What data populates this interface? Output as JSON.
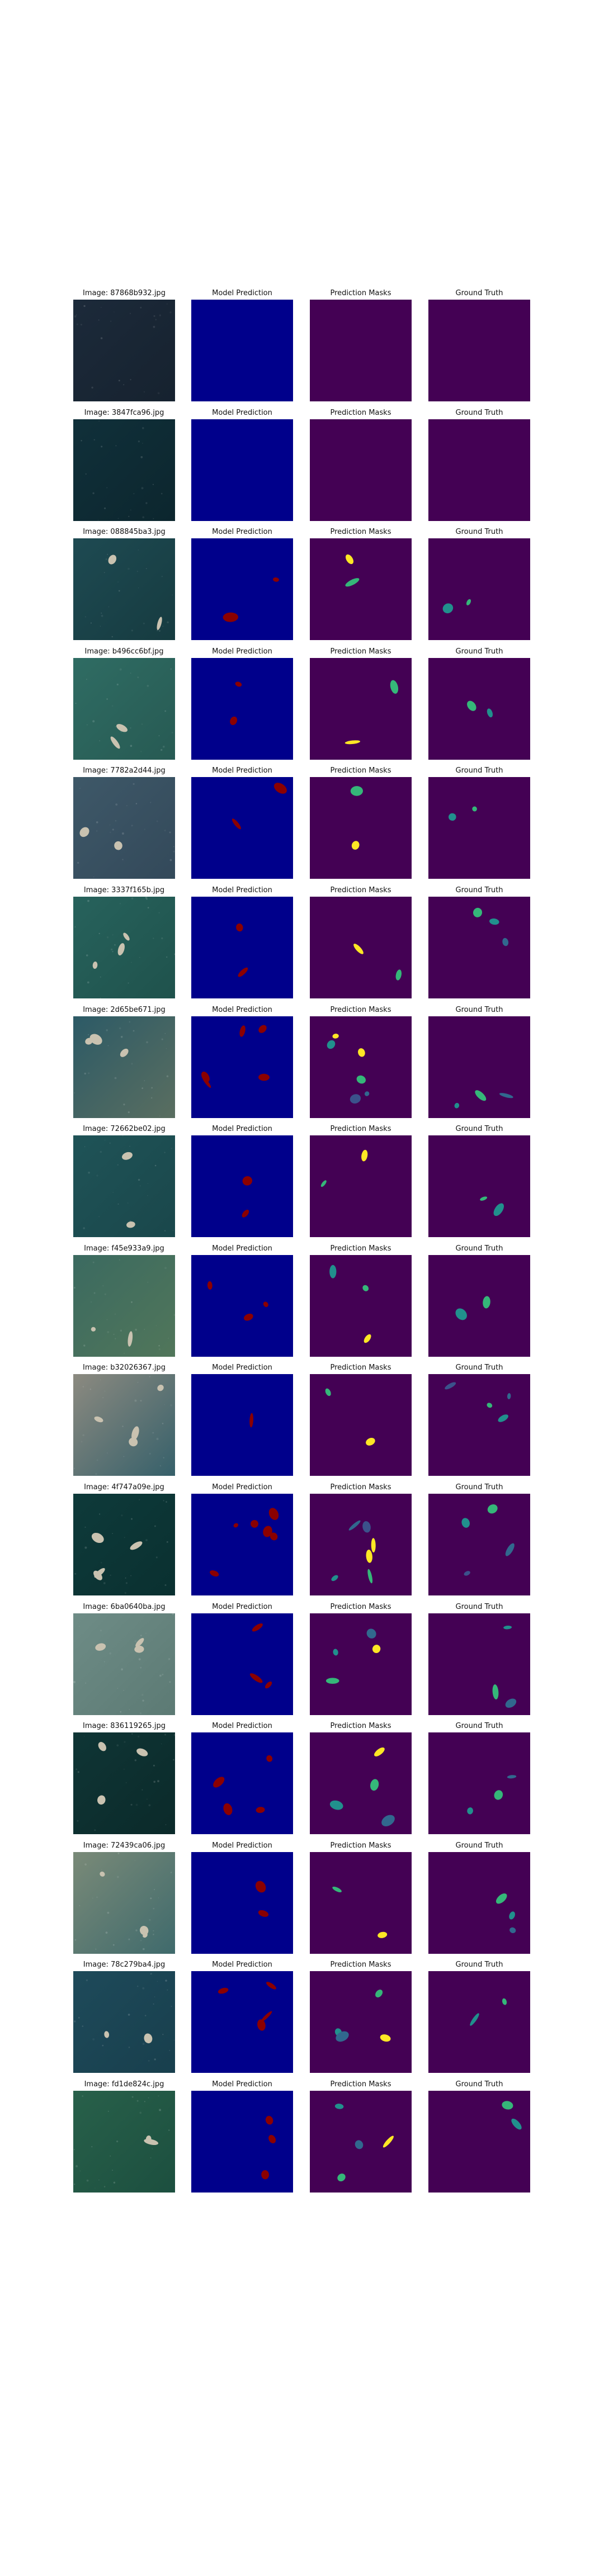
{
  "figure": {
    "column_titles": [
      "Model Prediction",
      "Prediction Masks",
      "Ground Truth"
    ],
    "colors": {
      "prediction_background": "#00008b",
      "prediction_blob": "#8b0000",
      "mask_background": "#440154",
      "gt_background": "#440154",
      "viridis_palette": [
        "#fde725",
        "#35b779",
        "#21908d",
        "#31688e",
        "#3b528b"
      ]
    },
    "rows": [
      {
        "image_label": "Image: 87868b932.jpg",
        "photo_colors": [
          "#1c2a3a",
          "#16222f"
        ],
        "pred_blobs": 0,
        "mask_blobs": 0,
        "gt_blobs": 0
      },
      {
        "image_label": "Image: 3847fca96.jpg",
        "photo_colors": [
          "#10303a",
          "#0c262e"
        ],
        "pred_blobs": 0,
        "mask_blobs": 0,
        "gt_blobs": 0
      },
      {
        "image_label": "Image: 088845ba3.jpg",
        "photo_colors": [
          "#1e4a52",
          "#163b40"
        ],
        "pred_blobs": 2,
        "mask_blobs": 2,
        "gt_blobs": 2
      },
      {
        "image_label": "Image: b496cc6bf.jpg",
        "photo_colors": [
          "#2f6c63",
          "#275a53"
        ],
        "pred_blobs": 2,
        "mask_blobs": 2,
        "gt_blobs": 2
      },
      {
        "image_label": "Image: 7782a2d44.jpg",
        "photo_colors": [
          "#3e5868",
          "#33495a"
        ],
        "pred_blobs": 2,
        "mask_blobs": 2,
        "gt_blobs": 2
      },
      {
        "image_label": "Image: 3337f165b.jpg",
        "photo_colors": [
          "#27625c",
          "#1f524c"
        ],
        "pred_blobs": 2,
        "mask_blobs": 2,
        "gt_blobs": 3
      },
      {
        "image_label": "Image: 2d65be671.jpg",
        "photo_colors": [
          "#2c5a66",
          "#5a6e60"
        ],
        "pred_blobs": 5,
        "mask_blobs": 6,
        "gt_blobs": 3
      },
      {
        "image_label": "Image: 72662be02.jpg",
        "photo_colors": [
          "#1f5357",
          "#1a474b"
        ],
        "pred_blobs": 2,
        "mask_blobs": 2,
        "gt_blobs": 2
      },
      {
        "image_label": "Image: f45e933a9.jpg",
        "photo_colors": [
          "#3b6a60",
          "#51765a"
        ],
        "pred_blobs": 3,
        "mask_blobs": 3,
        "gt_blobs": 2
      },
      {
        "image_label": "Image: b32026367.jpg",
        "photo_colors": [
          "#8c8a80",
          "#36606a"
        ],
        "pred_blobs": 1,
        "mask_blobs": 2,
        "gt_blobs": 4
      },
      {
        "image_label": "Image: 4f747a09e.jpg",
        "photo_colors": [
          "#0e3a3a",
          "#0a3030"
        ],
        "pred_blobs": 6,
        "mask_blobs": 6,
        "gt_blobs": 4
      },
      {
        "image_label": "Image: 6ba0640ba.jpg",
        "photo_colors": [
          "#6e8c86",
          "#5c7a74"
        ],
        "pred_blobs": 3,
        "mask_blobs": 4,
        "gt_blobs": 3
      },
      {
        "image_label": "Image: 836119265.jpg",
        "photo_colors": [
          "#0f3535",
          "#0b2a2a"
        ],
        "pred_blobs": 4,
        "mask_blobs": 4,
        "gt_blobs": 3
      },
      {
        "image_label": "Image: 72439ca06.jpg",
        "photo_colors": [
          "#7a8a78",
          "#3f6a6c"
        ],
        "pred_blobs": 2,
        "mask_blobs": 2,
        "gt_blobs": 3
      },
      {
        "image_label": "Image: 78c279ba4.jpg",
        "photo_colors": [
          "#1e4a5a",
          "#183f4d"
        ],
        "pred_blobs": 4,
        "mask_blobs": 4,
        "gt_blobs": 2
      },
      {
        "image_label": "Image: fd1de824c.jpg",
        "photo_colors": [
          "#28604a",
          "#1c4f3f"
        ],
        "pred_blobs": 3,
        "mask_blobs": 4,
        "gt_blobs": 2
      }
    ]
  }
}
